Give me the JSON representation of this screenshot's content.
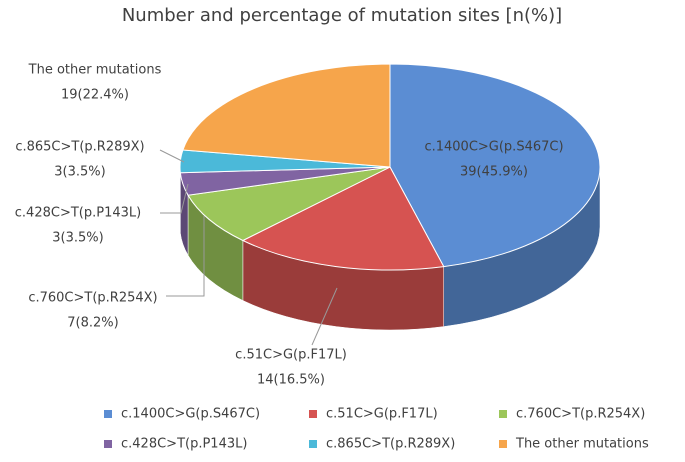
{
  "chart_data": {
    "type": "pie",
    "title": "Number and percentage of mutation sites [n(%)]",
    "categories": [
      "c.1400C>G(p.S467C)",
      "c.51C>G(p.F17L)",
      "c.760C>T(p.R254X)",
      "c.428C>T(p.P143L)",
      "c.865C>T(p.R289X)",
      "The other mutations"
    ],
    "values": [
      39,
      14,
      7,
      3,
      3,
      19
    ],
    "value_labels": [
      "39(45.9%)",
      "14(16.5%)",
      "7(8.2%)",
      "3(3.5%)",
      "3(3.5%)",
      "19(22.4%)"
    ],
    "colors": [
      "#5b8dd3",
      "#d65351",
      "#9cc65a",
      "#8064a2",
      "#4bb9d9",
      "#f6a54b"
    ],
    "legend": "bottom"
  }
}
